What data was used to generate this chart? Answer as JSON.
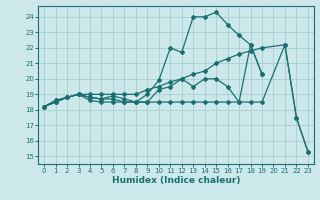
{
  "xlabel": "Humidex (Indice chaleur)",
  "xlim": [
    -0.5,
    23.5
  ],
  "ylim": [
    14.5,
    24.7
  ],
  "xticks": [
    0,
    1,
    2,
    3,
    4,
    5,
    6,
    7,
    8,
    9,
    10,
    11,
    12,
    13,
    14,
    15,
    16,
    17,
    18,
    19,
    20,
    21,
    22,
    23
  ],
  "yticks": [
    15,
    16,
    17,
    18,
    19,
    20,
    21,
    22,
    23,
    24
  ],
  "bg_color": "#cde8ea",
  "grid_color": "#a0c8cc",
  "line_color": "#1a7070",
  "series": [
    {
      "x": [
        0,
        1,
        2,
        3,
        4,
        5,
        6,
        7,
        8,
        9,
        10,
        11,
        12,
        13,
        14,
        15,
        16,
        17,
        18,
        19
      ],
      "y": [
        18.2,
        18.6,
        18.8,
        19.0,
        18.6,
        18.5,
        18.5,
        18.5,
        18.5,
        19.0,
        19.9,
        22.0,
        21.7,
        24.0,
        24.0,
        24.3,
        23.5,
        22.8,
        22.2,
        20.3
      ]
    },
    {
      "x": [
        0,
        1,
        2,
        3,
        4,
        5,
        6,
        7,
        8,
        9,
        10,
        11,
        12,
        13,
        14,
        15,
        16,
        17,
        18,
        19
      ],
      "y": [
        18.2,
        18.6,
        18.8,
        19.0,
        18.8,
        18.7,
        18.9,
        18.7,
        18.5,
        18.5,
        19.3,
        19.5,
        20.0,
        19.5,
        20.0,
        20.0,
        19.5,
        18.5,
        22.2,
        20.3
      ]
    },
    {
      "x": [
        0,
        1,
        2,
        3,
        4,
        5,
        6,
        7,
        8,
        9,
        10,
        11,
        12,
        13,
        14,
        15,
        16,
        17,
        18,
        19,
        21,
        22,
        23
      ],
      "y": [
        18.2,
        18.5,
        18.8,
        19.0,
        19.0,
        19.0,
        19.0,
        19.0,
        19.0,
        19.3,
        19.5,
        19.8,
        20.0,
        20.3,
        20.5,
        21.0,
        21.3,
        21.6,
        21.8,
        22.0,
        22.2,
        17.5,
        15.3
      ]
    },
    {
      "x": [
        0,
        1,
        2,
        3,
        4,
        5,
        6,
        7,
        8,
        9,
        10,
        11,
        12,
        13,
        14,
        15,
        16,
        17,
        18,
        19,
        21,
        22,
        23
      ],
      "y": [
        18.2,
        18.5,
        18.8,
        19.0,
        18.8,
        18.7,
        18.7,
        18.5,
        18.5,
        18.5,
        18.5,
        18.5,
        18.5,
        18.5,
        18.5,
        18.5,
        18.5,
        18.5,
        18.5,
        18.5,
        22.2,
        17.5,
        15.3
      ]
    }
  ]
}
